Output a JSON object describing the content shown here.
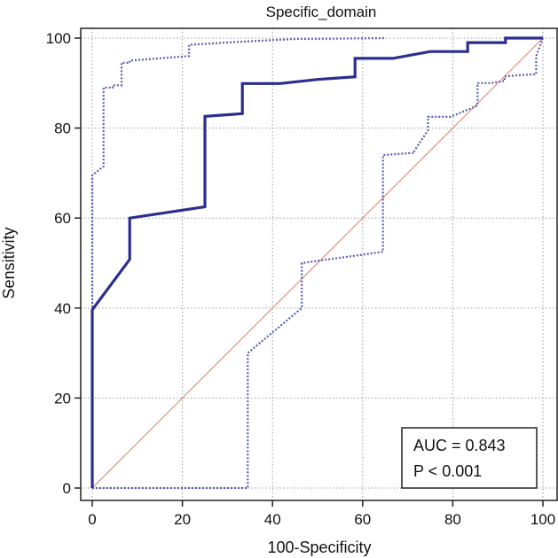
{
  "chart_data": {
    "type": "line",
    "title": "Specific_domain",
    "xlabel": "100-Specificity",
    "ylabel": "Sensitivity",
    "xlim": [
      0,
      100
    ],
    "ylim": [
      0,
      100
    ],
    "x_ticks": [
      0,
      20,
      40,
      60,
      80,
      100
    ],
    "y_ticks": [
      0,
      20,
      40,
      60,
      80,
      100
    ],
    "grid": true,
    "colors": {
      "roc": "#2b2e8f",
      "ci": "#5a5fb8",
      "reference": "#d9836b"
    },
    "annotation": {
      "auc": "AUC = 0.843",
      "p": "P < 0.001"
    },
    "series": [
      {
        "role": "roc",
        "style": "solid",
        "x": [
          0,
          0,
          8.3,
          8.3,
          25,
          25,
          33.3,
          33.3,
          41.7,
          50,
          58.3,
          58.3,
          66.7,
          75,
          83.3,
          83.3,
          91.7,
          91.7,
          100,
          100
        ],
        "y": [
          0,
          39.6,
          50.8,
          60,
          62.5,
          82.6,
          83.2,
          89.9,
          89.9,
          90.8,
          91.4,
          95.5,
          95.5,
          97,
          97,
          99,
          99,
          100,
          100,
          100
        ]
      },
      {
        "role": "ci_upper",
        "style": "dotted",
        "x": [
          0,
          0,
          2.5,
          2.5,
          4.5,
          4.5,
          6.5,
          6.5,
          8.3,
          8.3,
          21.5,
          21.5,
          33,
          45,
          65
        ],
        "y": [
          0,
          69.5,
          71.5,
          89,
          89,
          89.5,
          89.5,
          94.5,
          94.5,
          95,
          96,
          98.5,
          99.2,
          99.8,
          100
        ]
      },
      {
        "role": "ci_lower",
        "style": "dotted",
        "x": [
          0,
          34.5,
          34.5,
          46.5,
          46.5,
          64.5,
          64.5,
          71.5,
          71.5,
          74.5,
          74.5,
          79.5,
          85.5,
          85.5,
          88.5,
          91.5,
          91.5,
          98.5,
          98.5,
          100
        ],
        "y": [
          0,
          0,
          30,
          40,
          50,
          52.5,
          74,
          74.5,
          75,
          79.5,
          82.5,
          82.5,
          85,
          90,
          90,
          90.5,
          91.5,
          92,
          96,
          100
        ]
      },
      {
        "role": "reference",
        "style": "diagonal",
        "x": [
          0,
          100
        ],
        "y": [
          0,
          100
        ]
      }
    ]
  }
}
